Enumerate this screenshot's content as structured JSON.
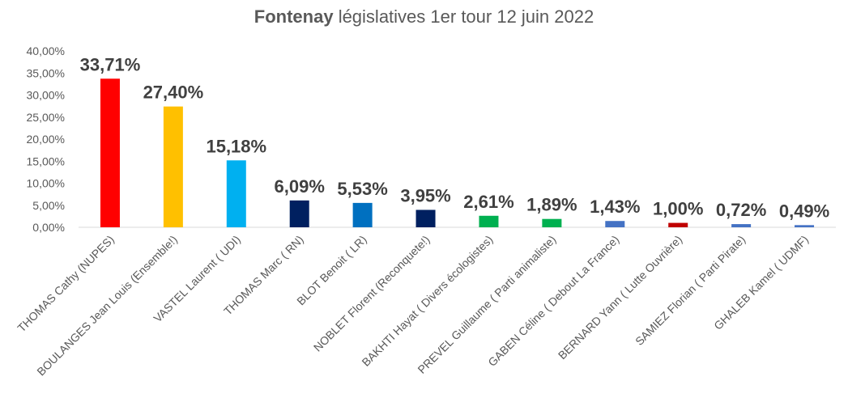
{
  "chart_data": {
    "type": "bar",
    "title_bold": "Fontenay",
    "title_rest": "législatives 1er tour  12 juin 2022",
    "xlabel": "",
    "ylabel": "",
    "ylim": [
      0,
      40
    ],
    "y_ticks": [
      "0,00%",
      "5,00%",
      "10,00%",
      "15,00%",
      "20,00%",
      "25,00%",
      "30,00%",
      "35,00%",
      "40,00%"
    ],
    "grid": false,
    "legend": "none",
    "categories": [
      "THOMAS Cathy (NUPES)",
      "BOULANGES Jean Louis (Ensemble!)",
      "VASTEL Laurent ( UDI)",
      "THOMAS Marc ( RN)",
      "BLOT Benoit ( LR)",
      "NOBLET Florent (Reconquete!)",
      "BAKHTI Hayat ( Divers écologistes)",
      "PREVEL Guillaume ( Parti animaliste)",
      "GABEN Céline ( Debout La France)",
      "BERNARD Yann ( Lutte Ouvrière)",
      "SAMIEZ Florian ( Parti Pirate)",
      "GHALEB Kamel ( UDMF)"
    ],
    "values": [
      33.71,
      27.4,
      15.18,
      6.09,
      5.53,
      3.95,
      2.61,
      1.89,
      1.43,
      1.0,
      0.72,
      0.49
    ],
    "data_labels": [
      "33,71%",
      "27,40%",
      "15,18%",
      "6,09%",
      "5,53%",
      "3,95%",
      "2,61%",
      "1,89%",
      "1,43%",
      "1,00%",
      "0,72%",
      "0,49%"
    ],
    "colors": [
      "#ff0000",
      "#ffc000",
      "#00b0f0",
      "#002060",
      "#0070c0",
      "#002060",
      "#00b050",
      "#00b050",
      "#4472c4",
      "#c00000",
      "#4472c4",
      "#4472c4"
    ]
  }
}
